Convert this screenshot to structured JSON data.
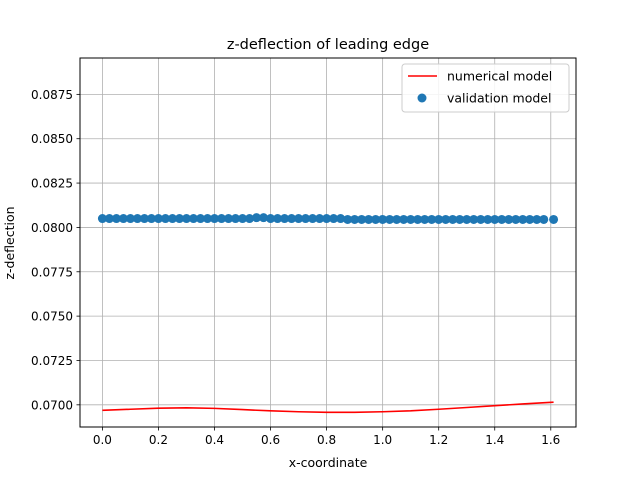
{
  "chart_data": {
    "type": "line",
    "title": "z-deflection of leading edge",
    "xlabel": "x-coordinate",
    "ylabel": "z-deflection",
    "xlim": [
      -0.08,
      1.69
    ],
    "ylim": [
      0.06875,
      0.08955
    ],
    "x_ticks": [
      0.0,
      0.2,
      0.4,
      0.6,
      0.8,
      1.0,
      1.2,
      1.4,
      1.6
    ],
    "x_tick_labels": [
      "0.0",
      "0.2",
      "0.4",
      "0.6",
      "0.8",
      "1.0",
      "1.2",
      "1.4",
      "1.6"
    ],
    "y_ticks": [
      0.07,
      0.0725,
      0.075,
      0.0775,
      0.08,
      0.0825,
      0.085,
      0.0875
    ],
    "y_tick_labels": [
      "0.0700",
      "0.0725",
      "0.0750",
      "0.0775",
      "0.0800",
      "0.0825",
      "0.0850",
      "0.0875"
    ],
    "grid": true,
    "legend_position": "top-right",
    "series": [
      {
        "name": "numerical model",
        "kind": "line",
        "color": "#ff0000",
        "x": [
          0.0,
          0.1,
          0.2,
          0.3,
          0.4,
          0.5,
          0.6,
          0.7,
          0.8,
          0.9,
          1.0,
          1.1,
          1.2,
          1.3,
          1.4,
          1.5,
          1.61
        ],
        "y": [
          0.06969,
          0.06975,
          0.06981,
          0.06983,
          0.0698,
          0.06973,
          0.06966,
          0.06961,
          0.06958,
          0.06958,
          0.06961,
          0.06966,
          0.06975,
          0.06985,
          0.06995,
          0.07005,
          0.07015
        ]
      },
      {
        "name": "validation model",
        "kind": "scatter",
        "color": "#1f77b4",
        "x": [
          0.0,
          0.025,
          0.05,
          0.075,
          0.1,
          0.125,
          0.15,
          0.175,
          0.2,
          0.225,
          0.25,
          0.275,
          0.3,
          0.325,
          0.35,
          0.375,
          0.4,
          0.425,
          0.45,
          0.475,
          0.5,
          0.525,
          0.55,
          0.575,
          0.6,
          0.625,
          0.65,
          0.675,
          0.7,
          0.725,
          0.75,
          0.775,
          0.8,
          0.825,
          0.85,
          0.875,
          0.9,
          0.925,
          0.95,
          0.975,
          1.0,
          1.025,
          1.05,
          1.075,
          1.1,
          1.125,
          1.15,
          1.175,
          1.2,
          1.225,
          1.25,
          1.275,
          1.3,
          1.325,
          1.35,
          1.375,
          1.4,
          1.425,
          1.45,
          1.475,
          1.5,
          1.525,
          1.55,
          1.575,
          1.61
        ],
        "y": [
          0.0805,
          0.0805,
          0.0805,
          0.0805,
          0.0805,
          0.0805,
          0.0805,
          0.0805,
          0.0805,
          0.0805,
          0.0805,
          0.0805,
          0.0805,
          0.0805,
          0.0805,
          0.0805,
          0.0805,
          0.0805,
          0.0805,
          0.0805,
          0.0805,
          0.0805,
          0.08055,
          0.08055,
          0.0805,
          0.0805,
          0.0805,
          0.0805,
          0.0805,
          0.0805,
          0.0805,
          0.0805,
          0.0805,
          0.0805,
          0.0805,
          0.08045,
          0.08045,
          0.08045,
          0.08045,
          0.08045,
          0.08045,
          0.08045,
          0.08045,
          0.08045,
          0.08045,
          0.08045,
          0.08045,
          0.08045,
          0.08045,
          0.08045,
          0.08045,
          0.08045,
          0.08045,
          0.08045,
          0.08045,
          0.08045,
          0.08045,
          0.08045,
          0.08045,
          0.08045,
          0.08045,
          0.08045,
          0.08045,
          0.08045,
          0.08045
        ]
      }
    ]
  }
}
